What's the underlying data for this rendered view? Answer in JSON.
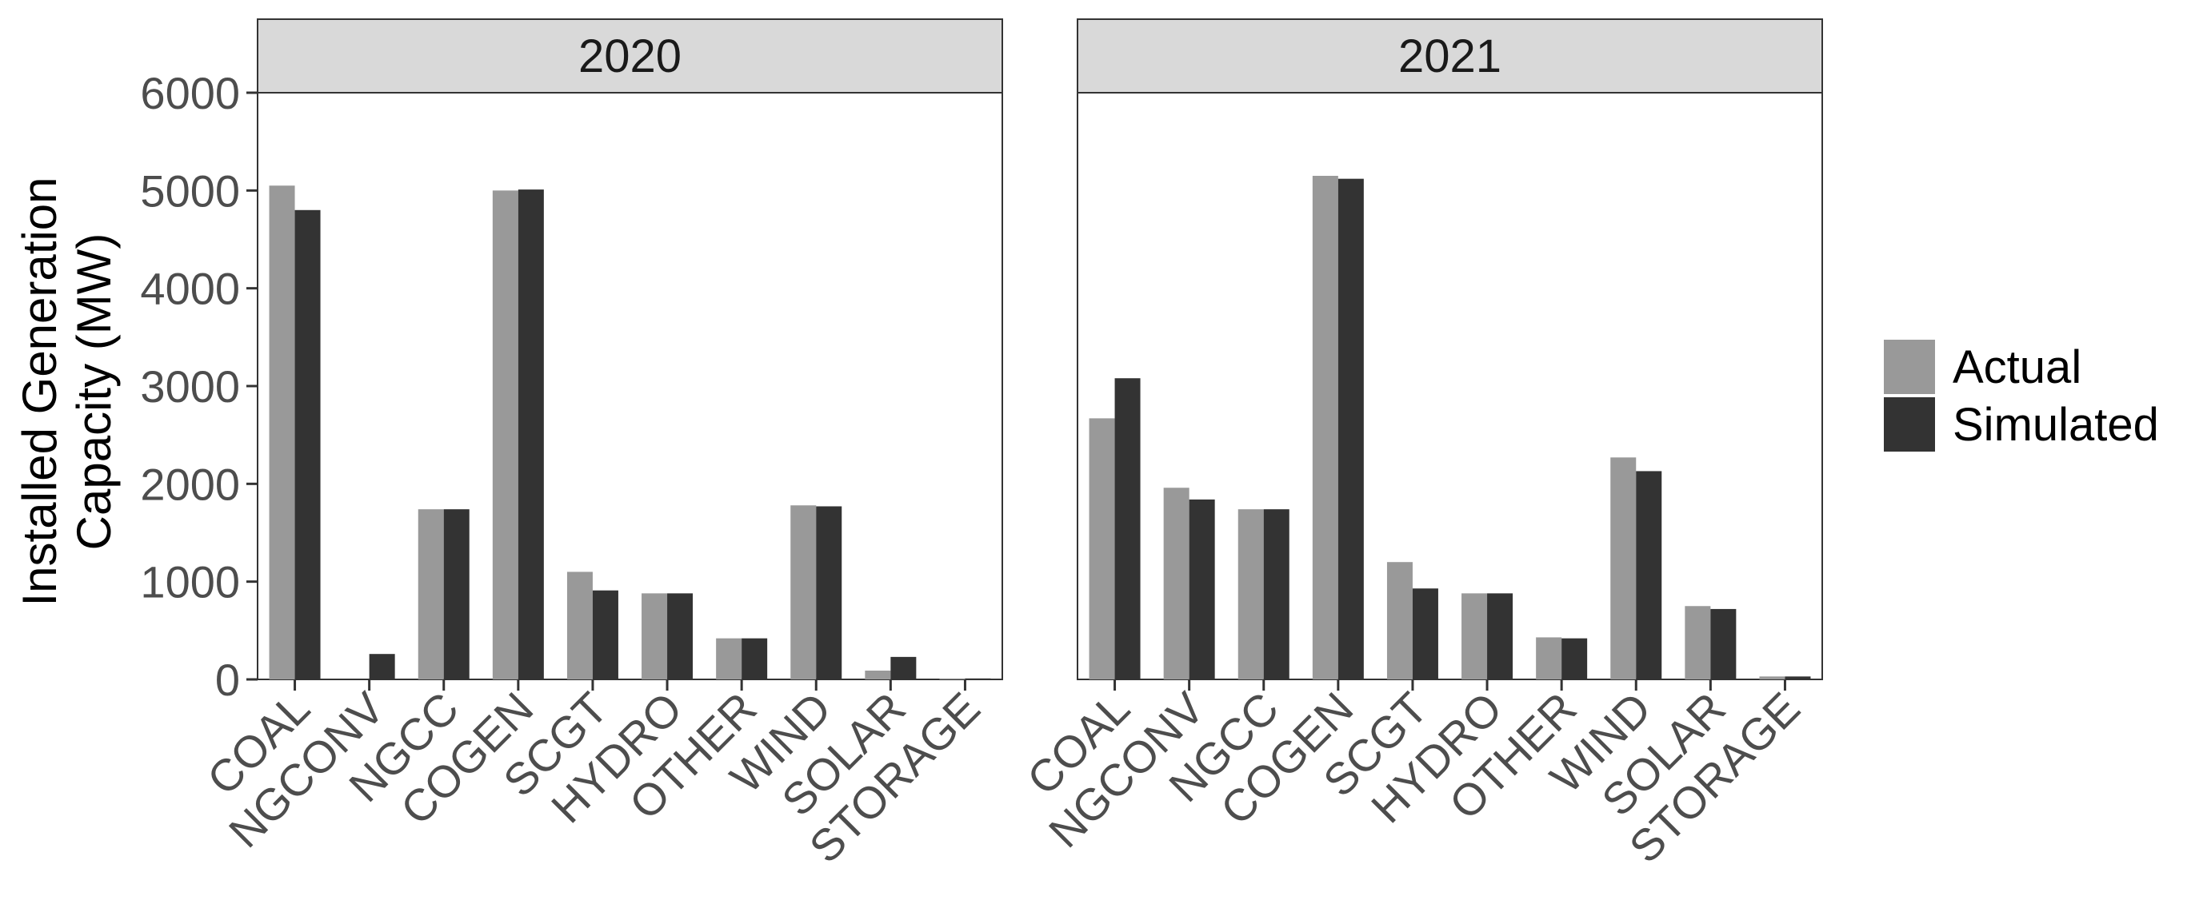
{
  "chart_data": {
    "type": "bar",
    "facets": [
      {
        "label": "2020",
        "categories": [
          "COAL",
          "NGCONV",
          "NGCC",
          "COGEN",
          "SCGT",
          "HYDRO",
          "OTHER",
          "WIND",
          "SOLAR",
          "STORAGE"
        ],
        "series": [
          {
            "name": "Actual",
            "values": [
              5050,
              0,
              1740,
              5000,
              1100,
              880,
              420,
              1780,
              90,
              10
            ]
          },
          {
            "name": "Simulated",
            "values": [
              4800,
              260,
              1740,
              5010,
              910,
              880,
              420,
              1770,
              230,
              10
            ]
          }
        ]
      },
      {
        "label": "2021",
        "categories": [
          "COAL",
          "NGCONV",
          "NGCC",
          "COGEN",
          "SCGT",
          "HYDRO",
          "OTHER",
          "WIND",
          "SOLAR",
          "STORAGE"
        ],
        "series": [
          {
            "name": "Actual",
            "values": [
              2670,
              1960,
              1740,
              5150,
              1200,
              880,
              430,
              2270,
              750,
              30
            ]
          },
          {
            "name": "Simulated",
            "values": [
              3080,
              1840,
              1740,
              5120,
              930,
              880,
              420,
              2130,
              720,
              30
            ]
          }
        ]
      }
    ],
    "ylabel_lines": [
      "Installed Generation",
      "Capacity (MW)"
    ],
    "yticks": [
      0,
      1000,
      2000,
      3000,
      4000,
      5000,
      6000
    ],
    "ylim": [
      0,
      6000
    ],
    "legend": {
      "position": "right",
      "entries": [
        "Actual",
        "Simulated"
      ]
    },
    "colors": {
      "Actual": "#999999",
      "Simulated": "#333333",
      "strip_bg": "#d9d9d9",
      "panel_border": "#333333"
    },
    "grid": false
  }
}
